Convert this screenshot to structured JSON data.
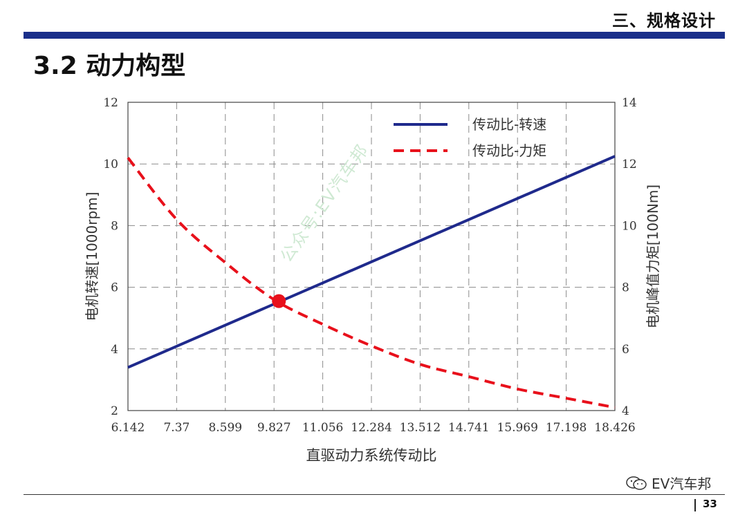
{
  "header": {
    "section_title": "三、规格设计",
    "page_heading": "3.2 动力构型"
  },
  "footer": {
    "brand": "EV汽车邦",
    "page_number": "33"
  },
  "watermark": {
    "text": "公众号:EV汽车邦"
  },
  "chart_data": {
    "type": "line",
    "xlabel": "直驱动力系统传动比",
    "ylabel_left": "电机转速[1000rpm]",
    "ylabel_right": "电机峰值力矩[100Nm]",
    "x_ticks": [
      "6.142",
      "7.37",
      "8.599",
      "9.827",
      "11.056",
      "12.284",
      "13.512",
      "14.741",
      "15.969",
      "17.198",
      "18.426"
    ],
    "xlim": [
      6.142,
      18.426
    ],
    "ylim_left": [
      2,
      12
    ],
    "ylim_right": [
      4,
      14
    ],
    "y_ticks_left": [
      "2",
      "4",
      "6",
      "8",
      "10",
      "12"
    ],
    "y_ticks_right": [
      "4",
      "6",
      "8",
      "10",
      "12",
      "14"
    ],
    "grid": true,
    "legend_position": "top-right",
    "series": [
      {
        "name": "传动比-转速",
        "axis": "left",
        "style": "solid",
        "color": "#1f2a8c",
        "x": [
          6.142,
          18.426
        ],
        "y": [
          3.4,
          10.25
        ]
      },
      {
        "name": "传动比-力矩",
        "axis": "right",
        "style": "dashed",
        "color": "#e8101b",
        "x": [
          6.142,
          7.37,
          8.599,
          9.827,
          11.056,
          12.284,
          13.512,
          14.741,
          15.969,
          17.198,
          18.426
        ],
        "y": [
          12.2,
          10.2,
          8.8,
          7.6,
          6.8,
          6.1,
          5.5,
          5.1,
          4.7,
          4.4,
          4.1
        ]
      }
    ],
    "markers": [
      {
        "x": 9.95,
        "y": 5.55,
        "axis": "left",
        "color": "#e8101b"
      }
    ]
  }
}
